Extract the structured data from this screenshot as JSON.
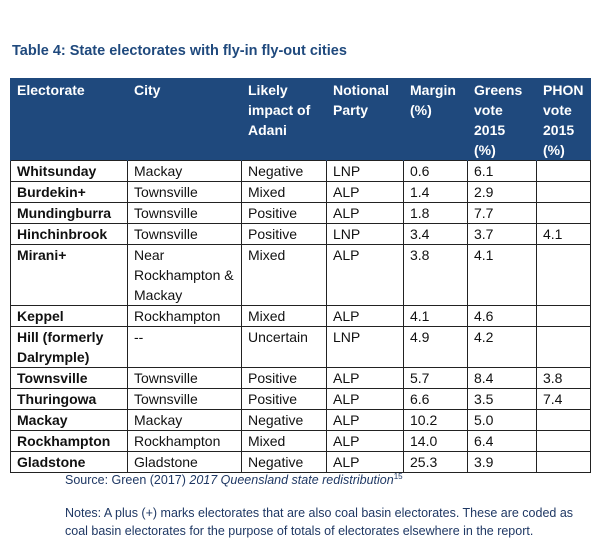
{
  "title": "Table 4: State electorates with fly-in fly-out cities",
  "table": {
    "header": [
      "Electorate",
      "City",
      "Likely impact of Adani",
      "Notional Party",
      "Margin (%)",
      "Greens vote 2015 (%)",
      "PHON vote 2015 (%)"
    ],
    "rows": [
      [
        "Whitsunday",
        "Mackay",
        "Negative",
        "LNP",
        "0.6",
        "6.1"
      ],
      [
        "Burdekin+",
        "Townsville",
        "Mixed",
        "ALP",
        "1.4",
        "2.9"
      ],
      [
        "Mundingburra",
        "Townsville",
        "Positive",
        "ALP",
        "1.8",
        "7.7"
      ],
      [
        "Hinchinbrook",
        "Townsville",
        "Positive",
        "LNP",
        "3.4",
        "3.7",
        "4.1"
      ],
      [
        "Mirani+",
        "Near Rockhampton & Mackay",
        "Mixed",
        "ALP",
        "3.8",
        "4.1"
      ],
      [
        "Keppel",
        "Rockhampton",
        "Mixed",
        "ALP",
        "4.1",
        "4.6"
      ],
      [
        "Hill (formerly Dalrymple)",
        "--",
        "Uncertain",
        "LNP",
        "4.9",
        "4.2"
      ],
      [
        "Townsville",
        "Townsville",
        "Positive",
        "ALP",
        "5.7",
        "8.4",
        "3.8"
      ],
      [
        "Thuringowa",
        "Townsville",
        "Positive",
        "ALP",
        "6.6",
        "3.5",
        "7.4"
      ],
      [
        "Mackay",
        "Mackay",
        "Negative",
        "ALP",
        "10.2",
        "5.0"
      ],
      [
        "Rockhampton",
        "Rockhampton",
        "Mixed",
        "ALP",
        "14.0",
        "6.4"
      ],
      [
        "Gladstone",
        "Gladstone",
        "Negative",
        "ALP",
        "25.3",
        "3.9"
      ]
    ]
  },
  "source": {
    "prefix": "Source: Green (2017)",
    "italic": "2017 Queensland state redistribution",
    "footnote": "15"
  },
  "notes": "Notes: A plus (+) marks electorates that are also coal basin electorates. These are coded as coal basin electorates for the purpose of totals of electorates elsewhere in the report."
}
